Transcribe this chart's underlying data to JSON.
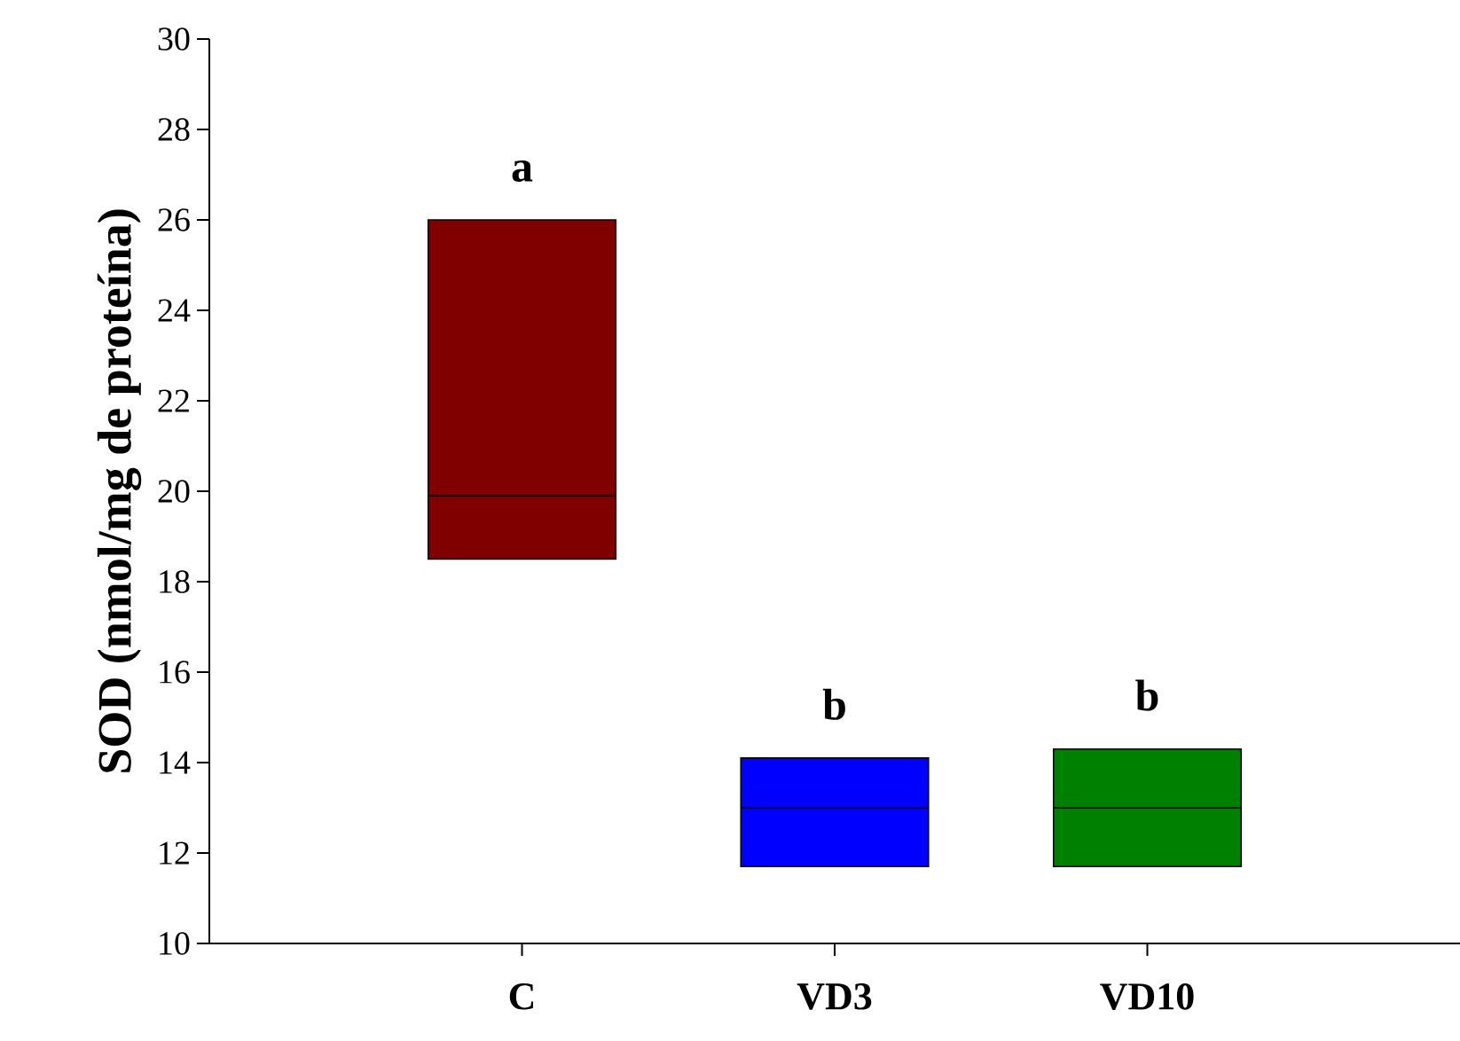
{
  "chart_data": {
    "type": "box",
    "ylabel": "SOD (nmol/mg de proteína)",
    "categories": [
      "C",
      "VD3",
      "VD10"
    ],
    "boxes": [
      {
        "low": 18.5,
        "q1": 18.5,
        "median": 19.9,
        "q3": 26.0,
        "high": 26.0
      },
      {
        "low": 11.7,
        "q1": 11.7,
        "median": 13.0,
        "q3": 14.1,
        "high": 14.1
      },
      {
        "low": 11.7,
        "q1": 11.7,
        "median": 13.0,
        "q3": 14.3,
        "high": 14.3
      }
    ],
    "colors": [
      "#800000",
      "#0000ff",
      "#008000"
    ],
    "ylim": [
      10,
      30
    ],
    "yticks": [
      10,
      12,
      14,
      16,
      18,
      20,
      22,
      24,
      26,
      28,
      30
    ],
    "annotations": [
      "a",
      "b",
      "b"
    ]
  }
}
